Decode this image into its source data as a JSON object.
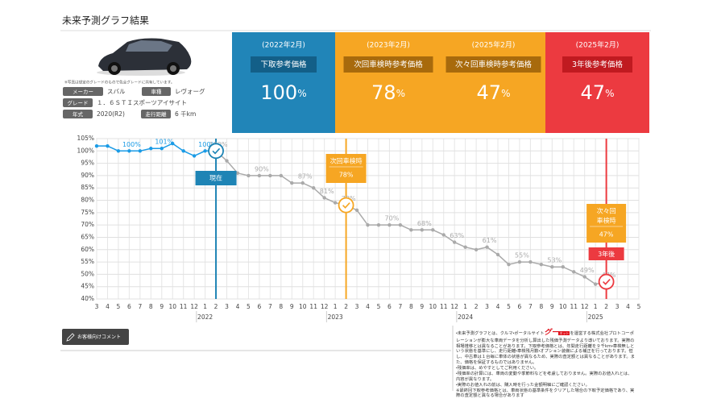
{
  "header": {
    "title": "未来予測グラフ結果"
  },
  "vehicle": {
    "photo_note": "※写真は想定のグレードのもので色全グレードに共有しています。",
    "fields": [
      {
        "key": "メーカー",
        "value": "スバル"
      },
      {
        "key": "車種",
        "value": "レヴォーグ"
      },
      {
        "key": "グレード",
        "value": "１．６ＳＴＩスポーツアイサイト"
      },
      {
        "key": "年式",
        "value": "2020(R2)"
      },
      {
        "key": "走行距離",
        "value": "6 千km"
      }
    ]
  },
  "cards": [
    {
      "date": "(2022年2月)",
      "label": "下取参考価格",
      "value": 100,
      "unit": "%",
      "color": "#2185b8",
      "label_color": "#135f88"
    },
    {
      "date": "(2023年2月)",
      "label": "次回車検時参考価格",
      "value": 78,
      "unit": "%",
      "color": "#f6a623",
      "label_color": "#a86a0c"
    },
    {
      "date": "(2025年2月)",
      "label": "次々回車検時参考価格",
      "value": 47,
      "unit": "%",
      "color": "#f6a623",
      "label_color": "#a86a0c"
    },
    {
      "date": "(2025年2月)",
      "label": "3年後参考価格",
      "value": 47,
      "unit": "%",
      "color": "#ec3a40",
      "label_color": "#c01a20"
    }
  ],
  "chart_data": {
    "type": "line",
    "categories": [
      "3",
      "4",
      "5",
      "6",
      "7",
      "8",
      "9",
      "10",
      "11",
      "12",
      "1",
      "2",
      "3",
      "4",
      "5",
      "6",
      "7",
      "8",
      "9",
      "10",
      "11",
      "12",
      "1",
      "2",
      "3",
      "4",
      "5",
      "6",
      "7",
      "8",
      "9",
      "10",
      "11",
      "12",
      "1",
      "2",
      "3",
      "4",
      "5",
      "6",
      "7",
      "8",
      "9",
      "10",
      "11",
      "12",
      "1",
      "2",
      "3",
      "4",
      "5"
    ],
    "year_labels": [
      {
        "label": "2022",
        "index": 10
      },
      {
        "label": "2023",
        "index": 22
      },
      {
        "label": "2024",
        "index": 34
      },
      {
        "label": "2025",
        "index": 46
      }
    ],
    "ylim": [
      40,
      105
    ],
    "yticks": [
      {
        "value": 40,
        "label": "40%"
      },
      {
        "value": 45,
        "label": "45%"
      },
      {
        "value": 50,
        "label": "50%"
      },
      {
        "value": 55,
        "label": "55%"
      },
      {
        "value": 60,
        "label": "60%"
      },
      {
        "value": 65,
        "label": "65%"
      },
      {
        "value": 70,
        "label": "70%"
      },
      {
        "value": 75,
        "label": "75%"
      },
      {
        "value": 80,
        "label": "80%"
      },
      {
        "value": 85,
        "label": "85%"
      },
      {
        "value": 90,
        "label": "90%"
      },
      {
        "value": 95,
        "label": "95%"
      },
      {
        "value": 100,
        "label": "100%"
      },
      {
        "value": 105,
        "label": "105%"
      }
    ],
    "grid": true,
    "series": [
      {
        "color": "#1a9be6",
        "values": [
          102,
          102,
          100,
          100,
          100,
          101,
          101,
          103,
          100,
          98,
          100,
          100,
          null,
          null,
          null,
          null,
          null,
          null,
          null,
          null,
          null,
          null,
          null,
          null,
          null,
          null,
          null,
          null,
          null,
          null,
          null,
          null,
          null,
          null,
          null,
          null,
          null,
          null,
          null,
          null,
          null,
          null,
          null,
          null,
          null,
          null,
          null,
          null,
          null,
          null,
          null
        ],
        "value_labels": [
          null,
          null,
          null,
          "100%",
          null,
          null,
          "101%",
          null,
          null,
          null,
          "100%",
          null,
          null,
          null,
          null,
          null,
          null,
          null,
          null,
          null,
          null,
          null,
          null,
          null,
          null,
          null,
          null,
          null,
          null,
          null,
          null,
          null,
          null,
          null,
          null,
          null,
          null,
          null,
          null,
          null,
          null,
          null,
          null,
          null,
          null,
          null,
          null,
          null,
          null,
          null,
          null
        ]
      },
      {
        "color": "#aaaaaa",
        "values": [
          null,
          null,
          null,
          null,
          null,
          null,
          null,
          null,
          null,
          null,
          null,
          100,
          96,
          91,
          90,
          90,
          90,
          90,
          87,
          87,
          85,
          81,
          79,
          78,
          76,
          70,
          70,
          70,
          70,
          68,
          68,
          68,
          66,
          63,
          61,
          60,
          61,
          58,
          54,
          55,
          55,
          54,
          53,
          53,
          51,
          49,
          46,
          47,
          null,
          null,
          null
        ],
        "value_labels": [
          null,
          null,
          null,
          null,
          null,
          null,
          null,
          null,
          null,
          null,
          null,
          "100%",
          null,
          null,
          null,
          "90%",
          null,
          null,
          null,
          "87%",
          null,
          "81%",
          null,
          "78%",
          null,
          null,
          null,
          "70%",
          null,
          null,
          "68%",
          null,
          null,
          "63%",
          null,
          null,
          "61%",
          null,
          null,
          "55%",
          null,
          null,
          "53%",
          null,
          null,
          "49%",
          null,
          "47%",
          null,
          null,
          null
        ]
      }
    ],
    "markers": [
      {
        "index": 11,
        "series": 1,
        "color": "#1e84b5",
        "box_color": "#1e84b5",
        "lines": [
          "現在"
        ]
      },
      {
        "index": 23,
        "series": 1,
        "color": "#f6a623",
        "box_color": "#f6a623",
        "lines": [
          "次回車検時"
        ],
        "value_label": "78%"
      },
      {
        "index": 47,
        "series": 1,
        "color": "#ec3a40",
        "box_color": "#f6a623",
        "lines": [
          "次々回",
          "車検時"
        ],
        "value_label": "47%",
        "tag": "3年後",
        "tag_color": "#ec3a40"
      }
    ]
  },
  "comment_button": "お客様向けコメント",
  "disclaimer": {
    "lead": "・未来予測グラフとは、クルマ・ポータルサイト",
    "logo_main": "グー",
    "logo_sub": "ネット",
    "rest": "を運営する株式会社プロトコーポレーションが膨大な車両データを分析し算出した残価予測データより導いております。実際の相場推移とは異なることがあります。下取参考価格とは、年間走行距離を９千km・車検無しという状態を基準にし、走行距離・車検残月数・オプション装備による補正を行っております。但し、中古車は１台毎に車体の状態が異なるため、実際の査定額とは異なることがあります。また、価格を保証するものではありません。",
    "notes": [
      "・残価率は、めやすとしてご利用ください。",
      "・残価率の計算には、車両の変動や季節料などを考慮しておりません。実際のお値入れとは、内容が異なります。",
      "・実際のお値入れの前は、購入時を行った金額明細にご確認ください。",
      "※最終回下取参考価格とは、車両状態の基準条件をクリアした場合の下取予定価格であり、実際の査定額と異なる場合があります"
    ]
  }
}
